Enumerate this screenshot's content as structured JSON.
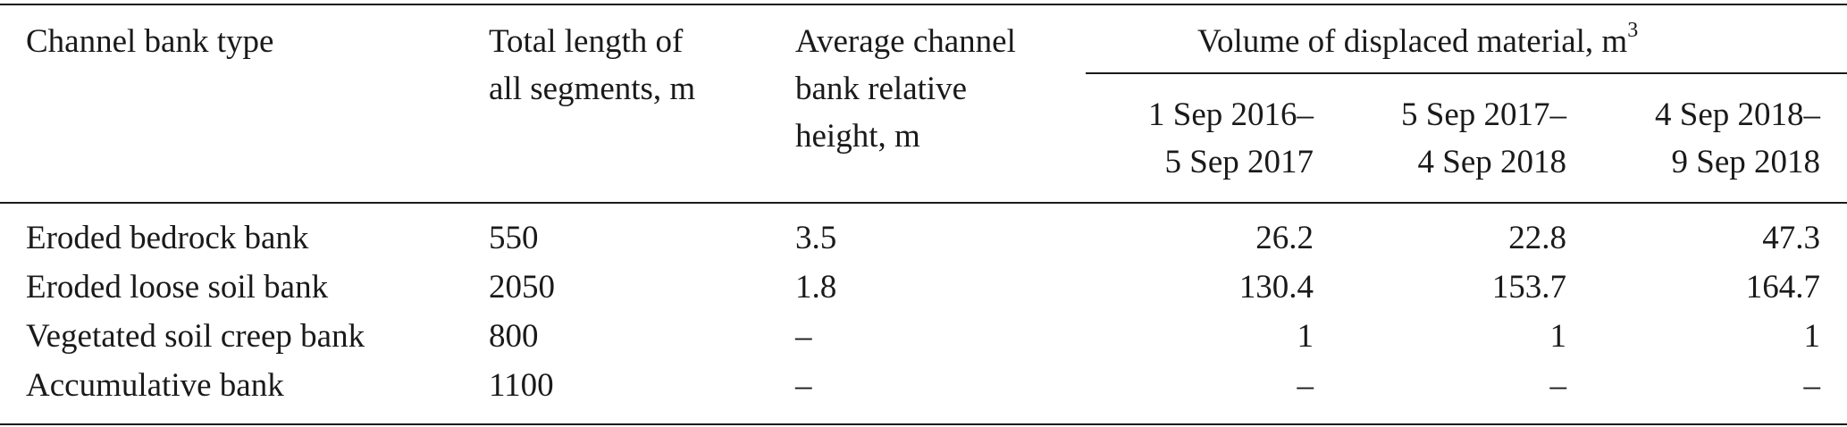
{
  "table": {
    "header": {
      "columns": [
        {
          "lines": [
            "Channel bank type"
          ]
        },
        {
          "lines": [
            "Total length of",
            "all segments, m"
          ]
        },
        {
          "lines": [
            "Average channel",
            "bank relative",
            "height, m"
          ]
        },
        {
          "lines": [
            "1 Sep 2016–",
            "5 Sep 2017"
          ]
        },
        {
          "lines": [
            "5 Sep 2017–",
            "4 Sep 2018"
          ]
        },
        {
          "lines": [
            "4 Sep 2018–",
            "9 Sep 2018"
          ]
        }
      ],
      "group": {
        "text": "Volume of displaced material, m",
        "superscript": "3"
      }
    },
    "rows": [
      [
        "Eroded bedrock bank",
        "550",
        "3.5",
        "26.2",
        "22.8",
        "47.3"
      ],
      [
        "Eroded loose soil bank",
        "2050",
        "1.8",
        "130.4",
        "153.7",
        "164.7"
      ],
      [
        "Vegetated soil creep bank",
        "800",
        "–",
        "1",
        "1",
        "1"
      ],
      [
        "Accumulative bank",
        "1100",
        "–",
        "–",
        "–",
        "–"
      ]
    ]
  }
}
